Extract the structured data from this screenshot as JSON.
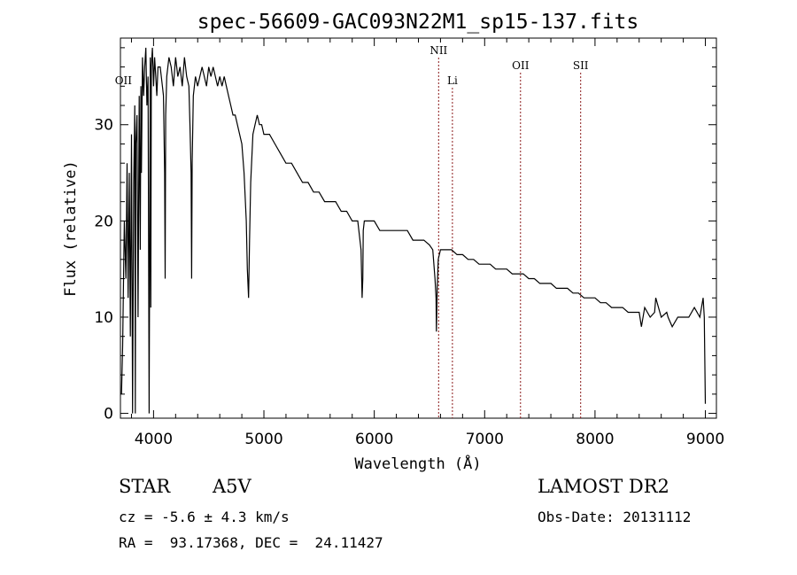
{
  "chart_data": {
    "type": "line",
    "title": "spec-56609-GAC093N22M1_sp15-137.fits",
    "xlabel": "Wavelength (Å)",
    "ylabel": "Flux (relative)",
    "xlim": [
      3700,
      9100
    ],
    "ylim": [
      -0.5,
      39
    ],
    "x_ticks": [
      4000,
      5000,
      6000,
      7000,
      8000,
      9000
    ],
    "y_ticks": [
      0,
      10,
      20,
      30
    ],
    "grid": false,
    "line_color": "#000000",
    "marker_color": "#8b1a1a",
    "series": [
      {
        "x": [
          3710,
          3720,
          3735,
          3750,
          3760,
          3770,
          3780,
          3790,
          3800,
          3810,
          3820,
          3830,
          3835,
          3840,
          3850,
          3860,
          3870,
          3880,
          3885,
          3890,
          3900,
          3910,
          3920,
          3930,
          3940,
          3950,
          3960,
          3970,
          3975,
          3980,
          3990,
          4000,
          4010,
          4020,
          4030,
          4040,
          4060,
          4080,
          4090,
          4100,
          4105,
          4110,
          4120,
          4140,
          4160,
          4180,
          4200,
          4220,
          4240,
          4260,
          4280,
          4300,
          4320,
          4330,
          4340,
          4345,
          4350,
          4360,
          4380,
          4400,
          4420,
          4440,
          4460,
          4480,
          4500,
          4520,
          4540,
          4560,
          4580,
          4600,
          4620,
          4640,
          4660,
          4680,
          4700,
          4720,
          4740,
          4760,
          4780,
          4800,
          4820,
          4840,
          4850,
          4861,
          4870,
          4880,
          4900,
          4920,
          4940,
          4960,
          4980,
          5000,
          5050,
          5100,
          5150,
          5200,
          5250,
          5300,
          5350,
          5400,
          5450,
          5500,
          5550,
          5600,
          5650,
          5700,
          5750,
          5800,
          5850,
          5880,
          5890,
          5896,
          5900,
          5910,
          5950,
          6000,
          6050,
          6100,
          6150,
          6200,
          6250,
          6300,
          6350,
          6400,
          6450,
          6500,
          6530,
          6550,
          6560,
          6563,
          6570,
          6580,
          6600,
          6650,
          6700,
          6750,
          6800,
          6850,
          6900,
          6950,
          7000,
          7050,
          7100,
          7150,
          7200,
          7250,
          7300,
          7350,
          7400,
          7450,
          7500,
          7550,
          7600,
          7650,
          7700,
          7750,
          7800,
          7850,
          7900,
          7950,
          8000,
          8050,
          8100,
          8150,
          8200,
          8250,
          8300,
          8350,
          8400,
          8420,
          8450,
          8500,
          8540,
          8550,
          8600,
          8650,
          8662,
          8700,
          8750,
          8800,
          8850,
          8900,
          8950,
          8980,
          8990,
          9000
        ],
        "y": [
          2,
          7,
          20,
          14,
          26,
          12,
          25,
          8,
          29,
          0,
          24,
          32,
          0,
          28,
          31,
          10,
          33,
          17,
          34,
          25,
          37,
          33,
          36,
          38,
          32,
          35,
          0,
          37,
          11,
          36,
          38,
          34,
          37,
          35,
          33,
          36,
          36,
          34,
          33,
          25,
          14,
          31,
          35,
          37,
          36,
          34,
          37,
          35,
          36,
          34,
          37,
          35,
          34,
          30,
          25,
          14,
          26,
          33,
          35,
          34,
          35,
          36,
          35,
          34,
          36,
          35,
          36,
          35,
          34,
          35,
          34,
          35,
          34,
          33,
          32,
          31,
          31,
          30,
          29,
          28,
          25,
          20,
          15,
          12,
          18,
          24,
          29,
          30,
          31,
          30,
          30,
          29,
          29,
          28,
          27,
          26,
          26,
          25,
          24,
          24,
          23,
          23,
          22,
          22,
          22,
          21,
          21,
          20,
          20,
          17,
          12,
          14,
          19,
          20,
          20,
          20,
          19,
          19,
          19,
          19,
          19,
          19,
          18,
          18,
          18,
          17.5,
          17,
          14,
          12,
          8.5,
          13,
          16,
          17,
          17,
          17,
          16.5,
          16.5,
          16,
          16,
          15.5,
          15.5,
          15.5,
          15,
          15,
          15,
          14.5,
          14.5,
          14.5,
          14,
          14,
          13.5,
          13.5,
          13.5,
          13,
          13,
          13,
          12.5,
          12.5,
          12,
          12,
          12,
          11.5,
          11.5,
          11,
          11,
          11,
          10.5,
          10.5,
          10.5,
          9,
          11,
          10,
          10.5,
          12,
          10,
          10.5,
          10,
          9,
          10,
          10,
          10,
          11,
          10,
          12,
          10,
          1
        ]
      }
    ],
    "line_markers": [
      {
        "label": "OII",
        "x": 3727,
        "label_row": "low"
      },
      {
        "label": "NII",
        "x": 6583,
        "label_row": "top"
      },
      {
        "label": "Li",
        "x": 6708,
        "label_row": "low"
      },
      {
        "label": "OII",
        "x": 7325,
        "label_row": "mid"
      },
      {
        "label": "SII",
        "x": 7870,
        "label_row": "mid"
      }
    ]
  },
  "info": {
    "object_type": "STAR",
    "subclass": "A5V",
    "survey": "LAMOST DR2",
    "cz": "cz = -5.6 ± 4.3 km/s",
    "obs_date": "Obs-Date: 20131112",
    "coords": "RA =  93.17368, DEC =  24.11427"
  }
}
